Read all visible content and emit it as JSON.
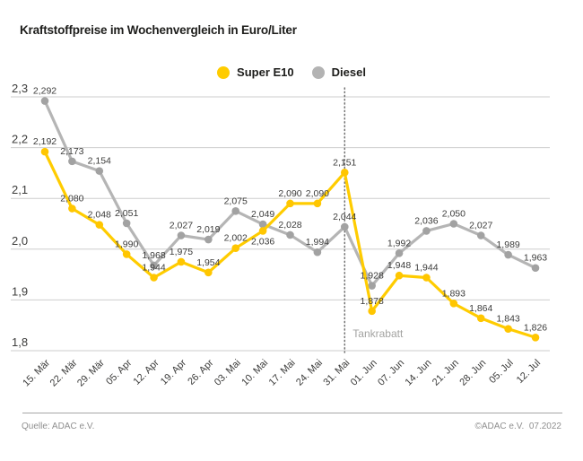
{
  "title": "Kraftstoffpreise im Wochenvergleich in Euro/Liter",
  "legend": {
    "items": [
      {
        "label": "Super E10",
        "color": "#FFCC00"
      },
      {
        "label": "Diesel",
        "color": "#B3B3B3"
      }
    ]
  },
  "footer": {
    "source": "Quelle: ADAC e.V.",
    "copyright": "©ADAC e.V.  07.2022"
  },
  "chart_data": {
    "type": "line",
    "title": "Kraftstoffpreise im Wochenvergleich in Euro/Liter",
    "categories": [
      "15. Mär",
      "22. Mär",
      "29. Mär",
      "05. Apr",
      "12. Apr",
      "19. Apr",
      "26. Apr",
      "03. Mai",
      "10. Mai",
      "17. Mai",
      "24. Mai",
      "31. Mai",
      "01. Jun",
      "07. Jun",
      "14. Jun",
      "21. Jun",
      "28. Jun",
      "05. Jul",
      "12. Jul"
    ],
    "series": [
      {
        "name": "Super E10",
        "color": "#FFCC00",
        "point_color": "#FFC600",
        "values": [
          2.192,
          2.08,
          2.048,
          1.99,
          1.944,
          1.975,
          1.954,
          2.002,
          2.036,
          2.09,
          2.09,
          2.151,
          1.878,
          1.948,
          1.944,
          1.893,
          1.864,
          1.843,
          1.826
        ]
      },
      {
        "name": "Diesel",
        "color": "#B5B5B5",
        "point_color": "#A2A2A2",
        "values": [
          2.292,
          2.173,
          2.154,
          2.051,
          1.968,
          2.027,
          2.019,
          2.075,
          2.049,
          2.028,
          1.994,
          2.044,
          1.928,
          1.992,
          2.036,
          2.05,
          2.027,
          1.989,
          1.963
        ]
      }
    ],
    "ylim": [
      1.8,
      2.3
    ],
    "yticks": [
      2.3,
      2.2,
      2.1,
      2.0,
      1.9,
      1.8
    ],
    "decimal_comma": true,
    "grid": "horizontal",
    "legend_position": "top-center",
    "annotation": {
      "label": "Tankrabatt",
      "x_index": 11
    },
    "label_overrides": [
      {
        "series": 0,
        "index": 8,
        "dx": 0,
        "dy": 15
      }
    ],
    "text_color": "#3c3c3b",
    "grid_color": "#cdcdcd",
    "annotation_color": "#a3a3a1",
    "annotation_line_color": "#707070"
  }
}
